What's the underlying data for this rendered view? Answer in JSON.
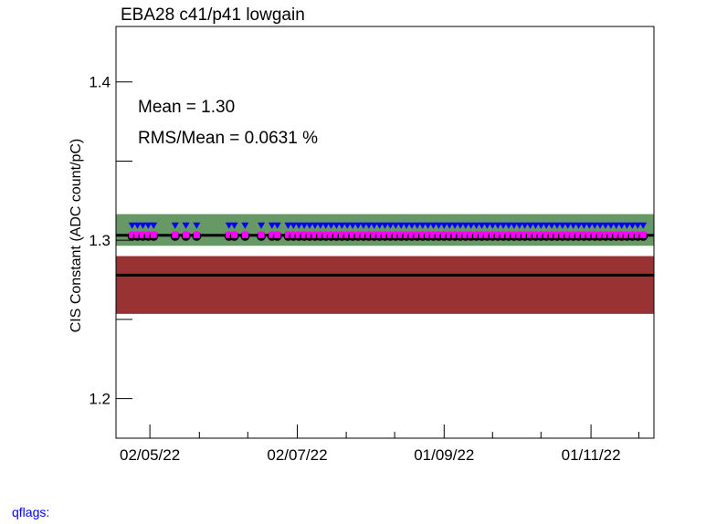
{
  "chart_data": {
    "type": "scatter",
    "title": "EBA28 c41/p41 lowgain",
    "ylabel": "CIS Constant (ADC count/pC)",
    "xlabel": "",
    "ylim": [
      1.175,
      1.435
    ],
    "y_ticks": [
      1.2,
      1.3,
      1.4
    ],
    "y_tick_labels": [
      "1.2",
      "1.3",
      "1.4"
    ],
    "x_tick_labels": [
      "02/05/22",
      "02/07/22",
      "01/09/22",
      "01/11/22"
    ],
    "stats": {
      "mean": "Mean = 1.30",
      "rms": "RMS/Mean = 0.0631 %"
    },
    "bands": [
      {
        "name": "green",
        "color": "#669966",
        "y_low": 1.2965,
        "y_high": 1.3165
      },
      {
        "name": "red",
        "color": "#993333",
        "y_low": 1.2535,
        "y_high": 1.29
      }
    ],
    "lines": {
      "mean_line": 1.3031,
      "reference_line": 1.278
    },
    "marker_colors": {
      "black_circle": "#000000",
      "magenta_square": "#ff00ff",
      "blue_triangle": "#0000ff"
    },
    "series": [
      {
        "x": [
          0.03,
          0.04,
          0.05,
          0.06,
          0.07,
          0.11,
          0.13,
          0.15,
          0.21,
          0.22,
          0.24,
          0.27,
          0.29,
          0.3,
          0.32,
          0.33,
          0.34,
          0.35,
          0.36,
          0.37,
          0.38,
          0.39,
          0.4,
          0.41,
          0.42,
          0.43,
          0.44,
          0.45,
          0.46,
          0.47,
          0.48,
          0.49,
          0.5,
          0.51,
          0.52,
          0.53,
          0.54,
          0.55,
          0.56,
          0.57,
          0.58,
          0.59,
          0.6,
          0.61,
          0.62,
          0.63,
          0.64,
          0.65,
          0.66,
          0.67,
          0.68,
          0.69,
          0.7,
          0.71,
          0.72,
          0.73,
          0.74,
          0.75,
          0.76,
          0.77,
          0.78,
          0.79,
          0.8,
          0.81,
          0.82,
          0.83,
          0.84,
          0.85,
          0.86,
          0.87,
          0.88,
          0.89,
          0.9,
          0.91,
          0.92,
          0.93,
          0.94,
          0.95,
          0.96,
          0.97,
          0.98
        ],
        "y": [
          1.3031,
          1.3031,
          1.3031,
          1.3031,
          1.3031,
          1.3031,
          1.3031,
          1.3031,
          1.3031,
          1.3031,
          1.3031,
          1.3031,
          1.3031,
          1.3031,
          1.3031,
          1.3031,
          1.3031,
          1.3031,
          1.3031,
          1.3031,
          1.3031,
          1.3031,
          1.3031,
          1.3031,
          1.3031,
          1.3031,
          1.3031,
          1.3031,
          1.3031,
          1.3031,
          1.3031,
          1.3031,
          1.3031,
          1.3031,
          1.3031,
          1.3031,
          1.3031,
          1.3031,
          1.3031,
          1.3031,
          1.3031,
          1.3031,
          1.3031,
          1.3031,
          1.3031,
          1.3031,
          1.3031,
          1.3031,
          1.3031,
          1.3031,
          1.3031,
          1.3031,
          1.3031,
          1.3031,
          1.3031,
          1.3031,
          1.3031,
          1.3031,
          1.3031,
          1.3031,
          1.3031,
          1.3031,
          1.3031,
          1.3031,
          1.3031,
          1.3031,
          1.3031,
          1.3031,
          1.3031,
          1.3031,
          1.3031,
          1.3031,
          1.3031,
          1.3031,
          1.3031,
          1.3031,
          1.3031,
          1.3031,
          1.3031,
          1.3031,
          1.3031
        ]
      }
    ],
    "grid": false
  },
  "footer": {
    "qflags_label": "qflags:"
  }
}
